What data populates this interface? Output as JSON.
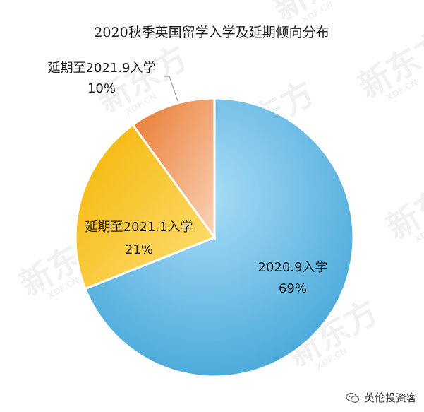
{
  "chart_data": {
    "type": "pie",
    "title": "2020秋季英国留学入学及延期倾向分布",
    "slices": [
      {
        "label": "2020.9入学",
        "value": 69,
        "value_label": "69%",
        "color": "#5fb4e2"
      },
      {
        "label": "延期至2021.1入学",
        "value": 21,
        "value_label": "21%",
        "color": "#f7c21f"
      },
      {
        "label": "延期至2021.9入学",
        "value": 10,
        "value_label": "10%",
        "color": "#ee8a4f"
      }
    ]
  },
  "watermark": {
    "brand": "新东方",
    "domain": "XDF.CN"
  },
  "footer": {
    "account": "英伦投资客",
    "icon": "wechat-icon"
  }
}
